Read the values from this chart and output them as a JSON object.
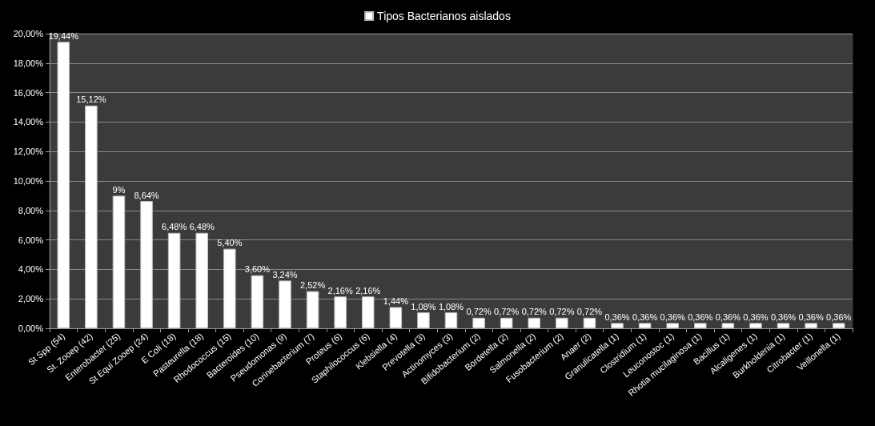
{
  "chart_data": {
    "type": "bar",
    "categories": [
      "St Spp (54)",
      "St. Zooep (42)",
      "Enterobacter (25)",
      "St Equi Zooep (24)",
      "E Coli (18)",
      "Pasteurella (18)",
      "Rhodococcus (15)",
      "Bacteroides (10)",
      "Pseudomonas (9)",
      "Corinebacterium (7)",
      "Proteus (6)",
      "Staphilococcus (6)",
      "Klebsiella (4)",
      "Prevotella (3)",
      "Actinomyces (3)",
      "Bifidobacterium (2)",
      "Bordetella (2)",
      "Salmonella (2)",
      "Fusobacterium (2)",
      "Anaer (2)",
      "Granulicatella (1)",
      "Clostridium (1)",
      "Leuconostoc (1)",
      "Rhotia mucilaginosa (1)",
      "Bacillus (1)",
      "Alcaligenes (1)",
      "Burkholdenia (1)",
      "Citrobacter (1)",
      "Veillonella (1)"
    ],
    "series": [
      {
        "name": "Tipos Bacterianos aislados",
        "color": "#ffffff",
        "values": [
          19.44,
          15.12,
          9,
          8.64,
          6.48,
          6.48,
          5.4,
          3.6,
          3.24,
          2.52,
          2.16,
          2.16,
          1.44,
          1.08,
          1.08,
          0.72,
          0.72,
          0.72,
          0.72,
          0.72,
          0.36,
          0.36,
          0.36,
          0.36,
          0.36,
          0.36,
          0.36,
          0.36,
          0.36
        ],
        "value_labels": [
          "19,44%",
          "15,12%",
          "9%",
          "8,64%",
          "6,48%",
          "6,48%",
          "5,40%",
          "3,60%",
          "3,24%",
          "2,52%",
          "2,16%",
          "2,16%",
          "1,44%",
          "1,08%",
          "1,08%",
          "0,72%",
          "0,72%",
          "0,72%",
          "0,72%",
          "0,72%",
          "0,36%",
          "0,36%",
          "0,36%",
          "0,36%",
          "0,36%",
          "0,36%",
          "0,36%",
          "0,36%",
          "0,36%"
        ]
      }
    ],
    "ylim": [
      0,
      20
    ],
    "yticks": [
      {
        "value": 0,
        "label": "0,00%"
      },
      {
        "value": 2,
        "label": "2,00%"
      },
      {
        "value": 4,
        "label": "4,00%"
      },
      {
        "value": 6,
        "label": "6,00%"
      },
      {
        "value": 8,
        "label": "8,00%"
      },
      {
        "value": 10,
        "label": "10,00%"
      },
      {
        "value": 12,
        "label": "12,00%"
      },
      {
        "value": 14,
        "label": "14,00%"
      },
      {
        "value": 16,
        "label": "16,00%"
      },
      {
        "value": 18,
        "label": "18,00%"
      },
      {
        "value": 20,
        "label": "20,00%"
      }
    ],
    "grid": "y",
    "legend": "top"
  }
}
